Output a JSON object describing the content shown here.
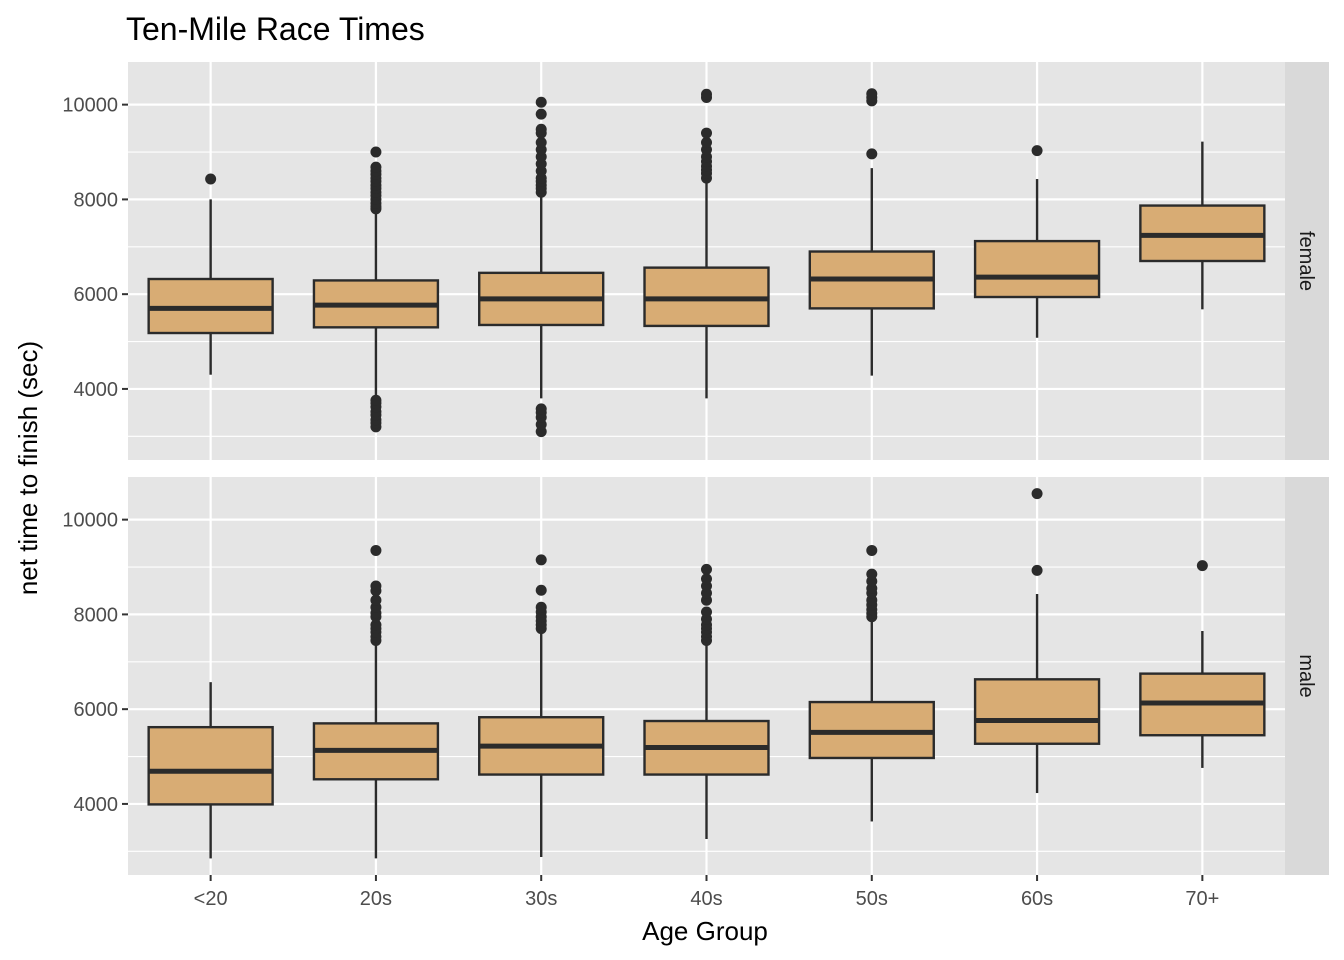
{
  "chart_data": {
    "type": "boxplot",
    "title": "Ten-Mile Race Times",
    "xlabel": "Age Group",
    "ylabel": "net time to finish (sec)",
    "categories": [
      "<20",
      "20s",
      "30s",
      "40s",
      "50s",
      "60s",
      "70+"
    ],
    "ylim": [
      2500,
      10900
    ],
    "yticks": [
      4000,
      6000,
      8000,
      10000
    ],
    "grid": true,
    "colors": {
      "panel_background": "#e5e5e5",
      "strip_background": "#d9d9d9",
      "box_fill": "#d8ac74",
      "box_line": "#2b2b2b",
      "grid": "#ffffff"
    },
    "facets": [
      {
        "label": "female",
        "boxes": [
          {
            "category": "<20",
            "lower_whisker": 4300,
            "q1": 5180,
            "median": 5700,
            "q3": 6320,
            "upper_whisker": 8000,
            "outliers": [
              8430
            ]
          },
          {
            "category": "20s",
            "lower_whisker": 3800,
            "q1": 5300,
            "median": 5770,
            "q3": 6290,
            "upper_whisker": 7750,
            "outliers": [
              3200,
              3280,
              3350,
              3450,
              3520,
              3620,
              3700,
              3760,
              7800,
              7850,
              7920,
              8000,
              8080,
              8150,
              8230,
              8300,
              8380,
              8450,
              8530,
              8600,
              8680,
              9000
            ]
          },
          {
            "category": "30s",
            "lower_whisker": 3800,
            "q1": 5350,
            "median": 5900,
            "q3": 6450,
            "upper_whisker": 8100,
            "outliers": [
              3100,
              3250,
              3400,
              3500,
              3580,
              8150,
              8230,
              8300,
              8380,
              8450,
              8600,
              8750,
              8900,
              9050,
              9200,
              9400,
              9480,
              9800,
              10050
            ]
          },
          {
            "category": "40s",
            "lower_whisker": 3800,
            "q1": 5330,
            "median": 5900,
            "q3": 6560,
            "upper_whisker": 8400,
            "outliers": [
              8450,
              8550,
              8620,
              8700,
              8800,
              8900,
              9050,
              9200,
              9400,
              10150,
              10220
            ]
          },
          {
            "category": "50s",
            "lower_whisker": 4280,
            "q1": 5700,
            "median": 6320,
            "q3": 6900,
            "upper_whisker": 8660,
            "outliers": [
              8960,
              10080,
              10150,
              10230
            ]
          },
          {
            "category": "60s",
            "lower_whisker": 5080,
            "q1": 5940,
            "median": 6360,
            "q3": 7120,
            "upper_whisker": 8430,
            "outliers": [
              9030
            ]
          },
          {
            "category": "70+",
            "lower_whisker": 5680,
            "q1": 6700,
            "median": 7240,
            "q3": 7870,
            "upper_whisker": 9220,
            "outliers": []
          }
        ]
      },
      {
        "label": "male",
        "boxes": [
          {
            "category": "<20",
            "lower_whisker": 2850,
            "q1": 3990,
            "median": 4690,
            "q3": 5620,
            "upper_whisker": 6570,
            "outliers": []
          },
          {
            "category": "20s",
            "lower_whisker": 2850,
            "q1": 4520,
            "median": 5130,
            "q3": 5700,
            "upper_whisker": 7400,
            "outliers": [
              7450,
              7530,
              7620,
              7700,
              7780,
              7950,
              8030,
              8150,
              8300,
              8500,
              8600,
              9350
            ]
          },
          {
            "category": "30s",
            "lower_whisker": 2880,
            "q1": 4620,
            "median": 5220,
            "q3": 5830,
            "upper_whisker": 7650,
            "outliers": [
              7700,
              7780,
              7860,
              7950,
              8050,
              8150,
              8510,
              9150
            ]
          },
          {
            "category": "40s",
            "lower_whisker": 3260,
            "q1": 4620,
            "median": 5190,
            "q3": 5750,
            "upper_whisker": 7400,
            "outliers": [
              7450,
              7530,
              7620,
              7700,
              7780,
              7900,
              8050,
              8300,
              8450,
              8600,
              8750,
              8950
            ]
          },
          {
            "category": "50s",
            "lower_whisker": 3630,
            "q1": 4970,
            "median": 5510,
            "q3": 6150,
            "upper_whisker": 7900,
            "outliers": [
              7950,
              8020,
              8100,
              8200,
              8300,
              8450,
              8550,
              8700,
              8850,
              9350
            ]
          },
          {
            "category": "60s",
            "lower_whisker": 4230,
            "q1": 5270,
            "median": 5760,
            "q3": 6630,
            "upper_whisker": 8430,
            "outliers": [
              8930,
              10550
            ]
          },
          {
            "category": "70+",
            "lower_whisker": 4760,
            "q1": 5450,
            "median": 6130,
            "q3": 6750,
            "upper_whisker": 7650,
            "outliers": [
              9030
            ]
          }
        ]
      }
    ]
  }
}
